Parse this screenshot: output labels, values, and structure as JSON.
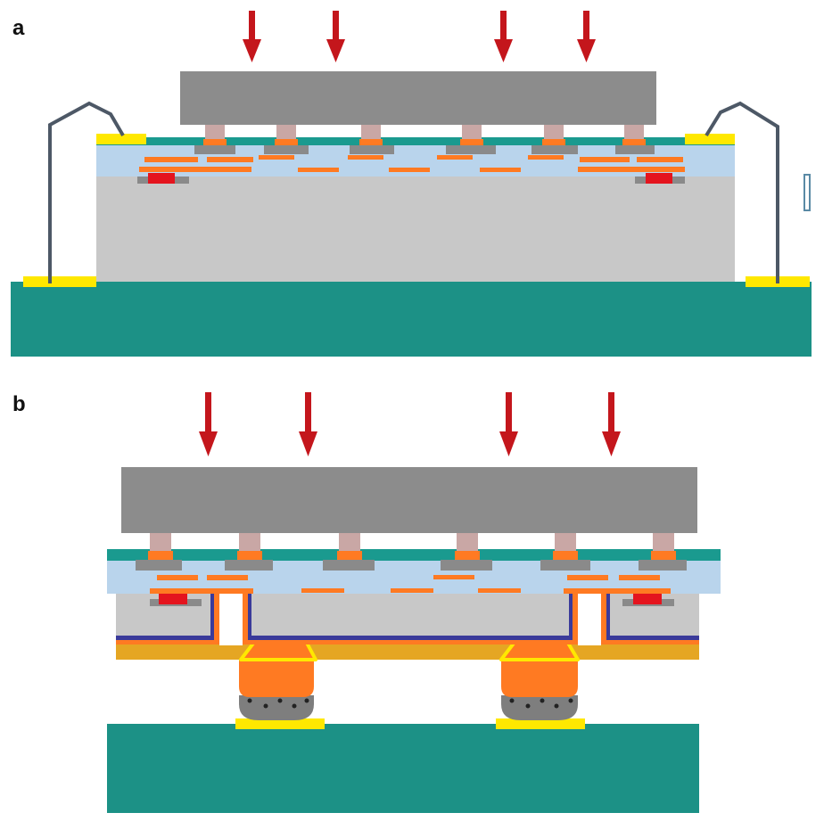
{
  "panels": [
    {
      "label": "a",
      "variant": "wire-bond"
    },
    {
      "label": "b",
      "variant": "tsv-bump"
    }
  ],
  "colors": {
    "arrow": "#c4161c",
    "sensor_block": "#8c8c8c",
    "die_body": "#c8c8c8",
    "dielectric": "#b9d4ec",
    "passivation": "#1a9a8f",
    "substrate": "#1c9186",
    "pad": "#ffe800",
    "metal_line": "#ff7a22",
    "red_pad": "#e4141e",
    "wire": "#4d5866",
    "pillar": "#c9a7a5",
    "bump": "#ff7a22",
    "solder": "#7e7e7e",
    "barrier": "#3a3a9a",
    "rdl": "#e5a623"
  }
}
